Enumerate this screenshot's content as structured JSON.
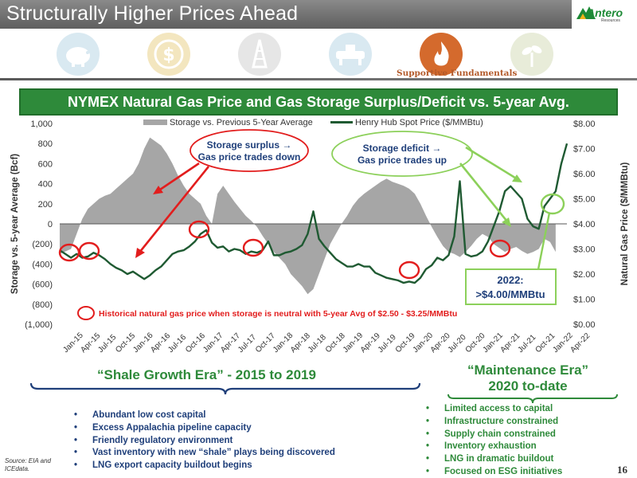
{
  "slide": {
    "title": "Structurally Higher Prices Ahead",
    "logo_text": "Antero",
    "logo_subtext": "Resources",
    "icons": [
      {
        "name": "piggy-bank-icon",
        "color": "#d9e9f1"
      },
      {
        "name": "dollar-icon",
        "color": "#f3e6bf"
      },
      {
        "name": "oil-derrick-icon",
        "color": "#e6e6e6"
      },
      {
        "name": "pipeline-icon",
        "color": "#d9e9f1"
      },
      {
        "name": "flame-icon",
        "color": "#d46a2d"
      },
      {
        "name": "plant-icon",
        "color": "#e8ecd9"
      }
    ],
    "supportive_label": "Supportive Fundamentals",
    "chart_banner": "NYMEX Natural Gas Price and Gas Storage Surplus/Deficit vs. 5-year Avg.",
    "shale_era_title": "“Shale Growth Era” - 2015 to 2019",
    "maintenance_era_title_line1": "“Maintenance Era”",
    "maintenance_era_title_line2": "2020 to-date",
    "shale_bullets": [
      "Abundant low cost capital",
      "Excess Appalachia pipeline capacity",
      "Friendly regulatory environment",
      "Vast inventory with new “shale” plays being discovered",
      "LNG export capacity buildout begins"
    ],
    "maintenance_bullets": [
      "Limited access to capital",
      "Infrastructure constrained",
      "Supply chain constrained",
      "Inventory exhaustion",
      "LNG in dramatic buildout",
      "Focused on ESG initiatives"
    ],
    "source": "Source: EIA and ICEdata.",
    "page_number": "16",
    "colors": {
      "green": "#2e8a3a",
      "dark_green": "#1f5a32",
      "red": "#e21d1d",
      "gray_area": "#a6a6a6",
      "blue_text": "#1f3f7a"
    }
  },
  "chart_data": {
    "type": "line",
    "legend": [
      "Storage vs. Previous 5-Year Average",
      "Henry Hub Spot Price ($/MMBtu)"
    ],
    "y_left": {
      "label": "Storage vs. 5-year Average (Bcf)",
      "range": [
        -1000,
        1000
      ],
      "ticks": [
        "1,000",
        "800",
        "600",
        "400",
        "200",
        "0",
        "(200)",
        "(400)",
        "(600)",
        "(800)",
        "(1,000)"
      ]
    },
    "y_right": {
      "label": "Natural Gas Price ($/MMBtu)",
      "range": [
        0,
        8
      ],
      "ticks": [
        "$8.00",
        "$7.00",
        "$6.00",
        "$5.00",
        "$4.00",
        "$3.00",
        "$2.00",
        "$1.00",
        "$0.00"
      ]
    },
    "x_ticks": [
      "Jan-15",
      "Apr-15",
      "Jul-15",
      "Oct-15",
      "Jan-16",
      "Apr-16",
      "Jul-16",
      "Oct-16",
      "Jan-17",
      "Apr-17",
      "Jul-17",
      "Oct-17",
      "Jan-18",
      "Apr-18",
      "Jul-18",
      "Oct-18",
      "Jan-19",
      "Apr-19",
      "Jul-19",
      "Oct-19",
      "Jan-20",
      "Apr-20",
      "Jul-20",
      "Oct-20",
      "Jan-21",
      "Apr-21",
      "Jul-21",
      "Oct-21",
      "Jan-22",
      "Apr-22"
    ],
    "series": [
      {
        "name": "Storage vs. Previous 5-Year Average",
        "axis": "left",
        "kind": "area",
        "points": [
          [
            0,
            -300
          ],
          [
            2,
            -250
          ],
          [
            3,
            -100
          ],
          [
            4,
            50
          ],
          [
            5,
            150
          ],
          [
            6,
            200
          ],
          [
            7,
            250
          ],
          [
            8,
            280
          ],
          [
            9,
            300
          ],
          [
            10,
            350
          ],
          [
            11,
            400
          ],
          [
            12,
            450
          ],
          [
            13,
            500
          ],
          [
            14,
            600
          ],
          [
            15,
            750
          ],
          [
            16,
            860
          ],
          [
            17,
            820
          ],
          [
            18,
            780
          ],
          [
            19,
            700
          ],
          [
            20,
            600
          ],
          [
            21,
            480
          ],
          [
            22,
            380
          ],
          [
            23,
            300
          ],
          [
            24,
            250
          ],
          [
            25,
            200
          ],
          [
            26,
            80
          ],
          [
            27,
            0
          ],
          [
            28,
            300
          ],
          [
            29,
            380
          ],
          [
            30,
            300
          ],
          [
            31,
            220
          ],
          [
            32,
            150
          ],
          [
            33,
            80
          ],
          [
            34,
            30
          ],
          [
            35,
            -30
          ],
          [
            36,
            -120
          ],
          [
            37,
            -200
          ],
          [
            38,
            -280
          ],
          [
            39,
            -340
          ],
          [
            40,
            -400
          ],
          [
            41,
            -500
          ],
          [
            42,
            -560
          ],
          [
            43,
            -620
          ],
          [
            44,
            -700
          ],
          [
            45,
            -650
          ],
          [
            46,
            -500
          ],
          [
            47,
            -350
          ],
          [
            48,
            -200
          ],
          [
            49,
            -100
          ],
          [
            50,
            0
          ],
          [
            51,
            80
          ],
          [
            52,
            180
          ],
          [
            53,
            250
          ],
          [
            54,
            300
          ],
          [
            55,
            340
          ],
          [
            56,
            380
          ],
          [
            57,
            420
          ],
          [
            58,
            450
          ],
          [
            59,
            420
          ],
          [
            60,
            400
          ],
          [
            61,
            380
          ],
          [
            62,
            350
          ],
          [
            63,
            300
          ],
          [
            64,
            200
          ],
          [
            65,
            80
          ],
          [
            66,
            -30
          ],
          [
            67,
            -130
          ],
          [
            68,
            -220
          ],
          [
            69,
            -280
          ],
          [
            70,
            -300
          ],
          [
            71,
            -330
          ],
          [
            72,
            -280
          ],
          [
            73,
            -220
          ],
          [
            74,
            -150
          ],
          [
            75,
            -100
          ],
          [
            76,
            -130
          ],
          [
            77,
            -200
          ],
          [
            78,
            -240
          ],
          [
            79,
            -280
          ],
          [
            80,
            -250
          ],
          [
            81,
            -230
          ],
          [
            82,
            -270
          ],
          [
            83,
            -300
          ],
          [
            84,
            -280
          ],
          [
            85,
            -250
          ],
          [
            86,
            -150
          ],
          [
            87,
            -180
          ],
          [
            88,
            -280
          ]
        ]
      },
      {
        "name": "Henry Hub Spot Price ($/MMBtu)",
        "axis": "right",
        "kind": "line",
        "points": [
          [
            0,
            2.95
          ],
          [
            1,
            2.8
          ],
          [
            2,
            2.65
          ],
          [
            3,
            2.8
          ],
          [
            4,
            2.65
          ],
          [
            5,
            2.7
          ],
          [
            6,
            2.85
          ],
          [
            7,
            2.75
          ],
          [
            8,
            2.6
          ],
          [
            9,
            2.4
          ],
          [
            10,
            2.25
          ],
          [
            11,
            2.15
          ],
          [
            12,
            2.0
          ],
          [
            13,
            2.1
          ],
          [
            14,
            1.95
          ],
          [
            15,
            1.8
          ],
          [
            16,
            1.95
          ],
          [
            17,
            2.15
          ],
          [
            18,
            2.3
          ],
          [
            19,
            2.55
          ],
          [
            20,
            2.8
          ],
          [
            21,
            2.9
          ],
          [
            22,
            2.95
          ],
          [
            23,
            3.1
          ],
          [
            24,
            3.3
          ],
          [
            25,
            3.6
          ],
          [
            26,
            3.75
          ],
          [
            27,
            3.25
          ],
          [
            28,
            3.05
          ],
          [
            29,
            3.1
          ],
          [
            30,
            2.9
          ],
          [
            31,
            3.0
          ],
          [
            32,
            2.95
          ],
          [
            33,
            2.8
          ],
          [
            34,
            2.9
          ],
          [
            35,
            2.85
          ],
          [
            36,
            2.95
          ],
          [
            37,
            3.3
          ],
          [
            38,
            2.75
          ],
          [
            39,
            2.75
          ],
          [
            40,
            2.85
          ],
          [
            41,
            2.9
          ],
          [
            42,
            3.0
          ],
          [
            43,
            3.15
          ],
          [
            44,
            3.6
          ],
          [
            45,
            4.5
          ],
          [
            46,
            3.4
          ],
          [
            47,
            3.1
          ],
          [
            48,
            2.85
          ],
          [
            49,
            2.6
          ],
          [
            50,
            2.45
          ],
          [
            51,
            2.3
          ],
          [
            52,
            2.3
          ],
          [
            53,
            2.4
          ],
          [
            54,
            2.3
          ],
          [
            55,
            2.3
          ],
          [
            56,
            2.05
          ],
          [
            57,
            1.95
          ],
          [
            58,
            1.85
          ],
          [
            59,
            1.8
          ],
          [
            60,
            1.75
          ],
          [
            61,
            1.65
          ],
          [
            62,
            1.7
          ],
          [
            63,
            1.65
          ],
          [
            64,
            1.85
          ],
          [
            65,
            2.2
          ],
          [
            66,
            2.35
          ],
          [
            67,
            2.65
          ],
          [
            68,
            2.55
          ],
          [
            69,
            2.75
          ],
          [
            70,
            3.5
          ],
          [
            71,
            5.7
          ],
          [
            72,
            2.8
          ],
          [
            73,
            2.7
          ],
          [
            74,
            2.75
          ],
          [
            75,
            2.9
          ],
          [
            76,
            3.3
          ],
          [
            77,
            3.9
          ],
          [
            78,
            4.5
          ],
          [
            79,
            5.3
          ],
          [
            80,
            5.5
          ],
          [
            81,
            5.25
          ],
          [
            82,
            5.0
          ],
          [
            83,
            4.2
          ],
          [
            84,
            3.9
          ],
          [
            85,
            3.8
          ],
          [
            86,
            4.7
          ],
          [
            87,
            5.0
          ],
          [
            88,
            5.3
          ],
          [
            89,
            6.4
          ],
          [
            90,
            7.2
          ]
        ]
      }
    ],
    "x_index_max": 90,
    "callouts": [
      "Storage surplus → Gas price trades down",
      "Storage deficit → Gas price trades up"
    ],
    "note_2022": "2022: >$4.00/MMBtu",
    "legend_note": "Historical natural gas price when storage is neutral with 5-year Avg of $2.50 - $3.25/MMBtu"
  }
}
